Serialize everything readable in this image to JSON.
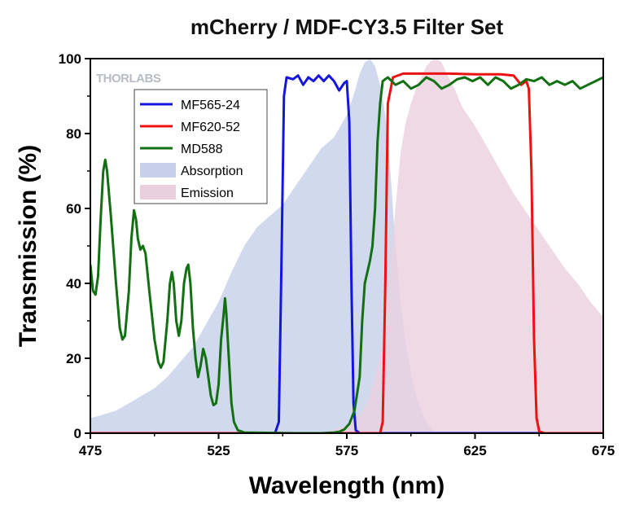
{
  "chart_data": {
    "type": "line",
    "title": "mCherry / MDF-CY3.5 Filter Set",
    "xlabel": "Wavelength (nm)",
    "ylabel": "Transmission (%)",
    "xlim": [
      475,
      675
    ],
    "ylim": [
      0,
      100
    ],
    "xticks": [
      475,
      525,
      575,
      625,
      675
    ],
    "yticks": [
      0,
      20,
      40,
      60,
      80,
      100
    ],
    "watermark": "THORLABS",
    "legend_position": "upper-left",
    "series": [
      {
        "name": "MF565-24",
        "kind": "line",
        "color": "#1515e0",
        "points": [
          [
            475,
            0
          ],
          [
            547,
            0
          ],
          [
            548.5,
            3
          ],
          [
            549.5,
            45
          ],
          [
            550.5,
            90
          ],
          [
            551.5,
            95
          ],
          [
            554,
            94.5
          ],
          [
            556,
            95.5
          ],
          [
            558,
            93
          ],
          [
            560,
            95
          ],
          [
            562,
            94
          ],
          [
            564,
            95.5
          ],
          [
            566,
            94
          ],
          [
            568,
            95.5
          ],
          [
            570,
            94
          ],
          [
            572,
            91.5
          ],
          [
            574,
            93.5
          ],
          [
            575,
            94
          ],
          [
            576,
            83
          ],
          [
            576.8,
            40
          ],
          [
            577.6,
            8
          ],
          [
            578.5,
            0.8
          ],
          [
            580,
            0
          ],
          [
            675,
            0
          ]
        ]
      },
      {
        "name": "MF620-52",
        "kind": "line",
        "color": "#ee1111",
        "points": [
          [
            475,
            0
          ],
          [
            588,
            0
          ],
          [
            589,
            3
          ],
          [
            590,
            40
          ],
          [
            591,
            88
          ],
          [
            593,
            95
          ],
          [
            597,
            96
          ],
          [
            605,
            96
          ],
          [
            615,
            96
          ],
          [
            625,
            95.8
          ],
          [
            635,
            95.8
          ],
          [
            640,
            95.5
          ],
          [
            643,
            93
          ],
          [
            645,
            94
          ],
          [
            646,
            92
          ],
          [
            647,
            70
          ],
          [
            648,
            25
          ],
          [
            649,
            4
          ],
          [
            650,
            0.5
          ],
          [
            652,
            0
          ],
          [
            675,
            0
          ]
        ]
      },
      {
        "name": "MD588",
        "kind": "line",
        "color": "#127012",
        "points": [
          [
            475,
            45
          ],
          [
            476,
            38
          ],
          [
            477,
            37
          ],
          [
            478,
            42
          ],
          [
            479,
            57
          ],
          [
            480,
            70
          ],
          [
            480.8,
            73
          ],
          [
            481.5,
            70
          ],
          [
            483,
            58
          ],
          [
            485,
            40
          ],
          [
            486.5,
            28
          ],
          [
            487.5,
            25
          ],
          [
            488.5,
            26
          ],
          [
            490,
            38
          ],
          [
            491,
            52
          ],
          [
            492,
            59.5
          ],
          [
            492.8,
            57
          ],
          [
            493.5,
            52
          ],
          [
            494.5,
            49
          ],
          [
            495.5,
            50
          ],
          [
            496.5,
            48
          ],
          [
            498,
            38
          ],
          [
            500,
            25
          ],
          [
            501.5,
            19
          ],
          [
            502.5,
            17.5
          ],
          [
            503.5,
            19
          ],
          [
            505,
            30
          ],
          [
            506,
            40
          ],
          [
            506.8,
            43
          ],
          [
            507.5,
            40
          ],
          [
            508.5,
            30
          ],
          [
            509.5,
            26
          ],
          [
            510.5,
            30
          ],
          [
            511.5,
            40
          ],
          [
            512.5,
            44
          ],
          [
            513.2,
            45
          ],
          [
            514,
            40
          ],
          [
            515,
            28
          ],
          [
            516,
            20
          ],
          [
            517,
            15
          ],
          [
            518,
            18
          ],
          [
            519,
            22.5
          ],
          [
            520,
            20
          ],
          [
            521,
            15
          ],
          [
            522,
            10
          ],
          [
            523,
            7.5
          ],
          [
            524,
            8
          ],
          [
            525,
            13
          ],
          [
            526,
            25
          ],
          [
            527,
            32
          ],
          [
            527.5,
            36
          ],
          [
            528,
            32
          ],
          [
            529,
            20
          ],
          [
            530,
            8
          ],
          [
            531,
            3
          ],
          [
            532.5,
            0.8
          ],
          [
            535,
            0.2
          ],
          [
            555,
            0
          ],
          [
            565,
            0
          ],
          [
            570,
            0.2
          ],
          [
            572,
            0.4
          ],
          [
            574,
            1
          ],
          [
            576,
            2.5
          ],
          [
            578,
            6
          ],
          [
            580,
            15
          ],
          [
            581,
            30
          ],
          [
            582,
            40
          ],
          [
            584,
            46
          ],
          [
            585,
            50
          ],
          [
            586,
            60
          ],
          [
            587,
            78
          ],
          [
            588,
            88
          ],
          [
            589,
            94
          ],
          [
            591,
            95
          ],
          [
            594,
            93
          ],
          [
            597,
            94
          ],
          [
            600,
            92
          ],
          [
            603,
            93
          ],
          [
            606,
            95
          ],
          [
            609,
            94
          ],
          [
            612,
            92
          ],
          [
            615,
            93
          ],
          [
            618,
            94.5
          ],
          [
            621,
            95
          ],
          [
            624,
            94
          ],
          [
            627,
            95
          ],
          [
            630,
            93
          ],
          [
            633,
            95
          ],
          [
            636,
            94
          ],
          [
            639,
            92
          ],
          [
            642,
            93
          ],
          [
            645,
            94.5
          ],
          [
            648,
            94
          ],
          [
            651,
            95
          ],
          [
            654,
            93
          ],
          [
            657,
            94
          ],
          [
            660,
            93
          ],
          [
            663,
            94
          ],
          [
            666,
            92
          ],
          [
            669,
            93
          ],
          [
            672,
            94
          ],
          [
            675,
            95
          ]
        ]
      },
      {
        "name": "Absorption",
        "kind": "area",
        "color": "#c6d0eb",
        "points": [
          [
            475,
            4
          ],
          [
            480,
            5
          ],
          [
            485,
            6
          ],
          [
            490,
            8
          ],
          [
            495,
            10
          ],
          [
            500,
            12
          ],
          [
            505,
            15
          ],
          [
            510,
            19
          ],
          [
            515,
            23
          ],
          [
            520,
            29
          ],
          [
            525,
            35
          ],
          [
            530,
            43
          ],
          [
            535,
            50
          ],
          [
            540,
            55
          ],
          [
            545,
            58
          ],
          [
            550,
            61
          ],
          [
            555,
            66
          ],
          [
            560,
            71
          ],
          [
            565,
            76
          ],
          [
            570,
            79
          ],
          [
            575,
            85
          ],
          [
            578,
            91
          ],
          [
            580,
            96
          ],
          [
            582,
            99
          ],
          [
            584,
            100
          ],
          [
            586,
            98
          ],
          [
            588,
            93
          ],
          [
            590,
            85
          ],
          [
            592,
            70
          ],
          [
            594,
            50
          ],
          [
            596,
            35
          ],
          [
            598,
            24
          ],
          [
            600,
            16
          ],
          [
            602,
            10
          ],
          [
            604,
            6
          ],
          [
            606,
            3
          ],
          [
            608,
            1
          ],
          [
            610,
            0
          ]
        ]
      },
      {
        "name": "Emission",
        "kind": "area",
        "color": "#ead0df",
        "points": [
          [
            565,
            0
          ],
          [
            570,
            1
          ],
          [
            575,
            2
          ],
          [
            578,
            4
          ],
          [
            580,
            5
          ],
          [
            583,
            8
          ],
          [
            585,
            13
          ],
          [
            588,
            20
          ],
          [
            590,
            30
          ],
          [
            592,
            45
          ],
          [
            594,
            60
          ],
          [
            596,
            75
          ],
          [
            598,
            83
          ],
          [
            600,
            88
          ],
          [
            602,
            92
          ],
          [
            604,
            95
          ],
          [
            606,
            98
          ],
          [
            608,
            99.5
          ],
          [
            610,
            100
          ],
          [
            612,
            99
          ],
          [
            614,
            96
          ],
          [
            617,
            92
          ],
          [
            620,
            87
          ],
          [
            625,
            82
          ],
          [
            630,
            76
          ],
          [
            635,
            70
          ],
          [
            640,
            64
          ],
          [
            645,
            59
          ],
          [
            650,
            54
          ],
          [
            655,
            49
          ],
          [
            660,
            44
          ],
          [
            665,
            40
          ],
          [
            670,
            35
          ],
          [
            675,
            31
          ]
        ]
      }
    ]
  }
}
